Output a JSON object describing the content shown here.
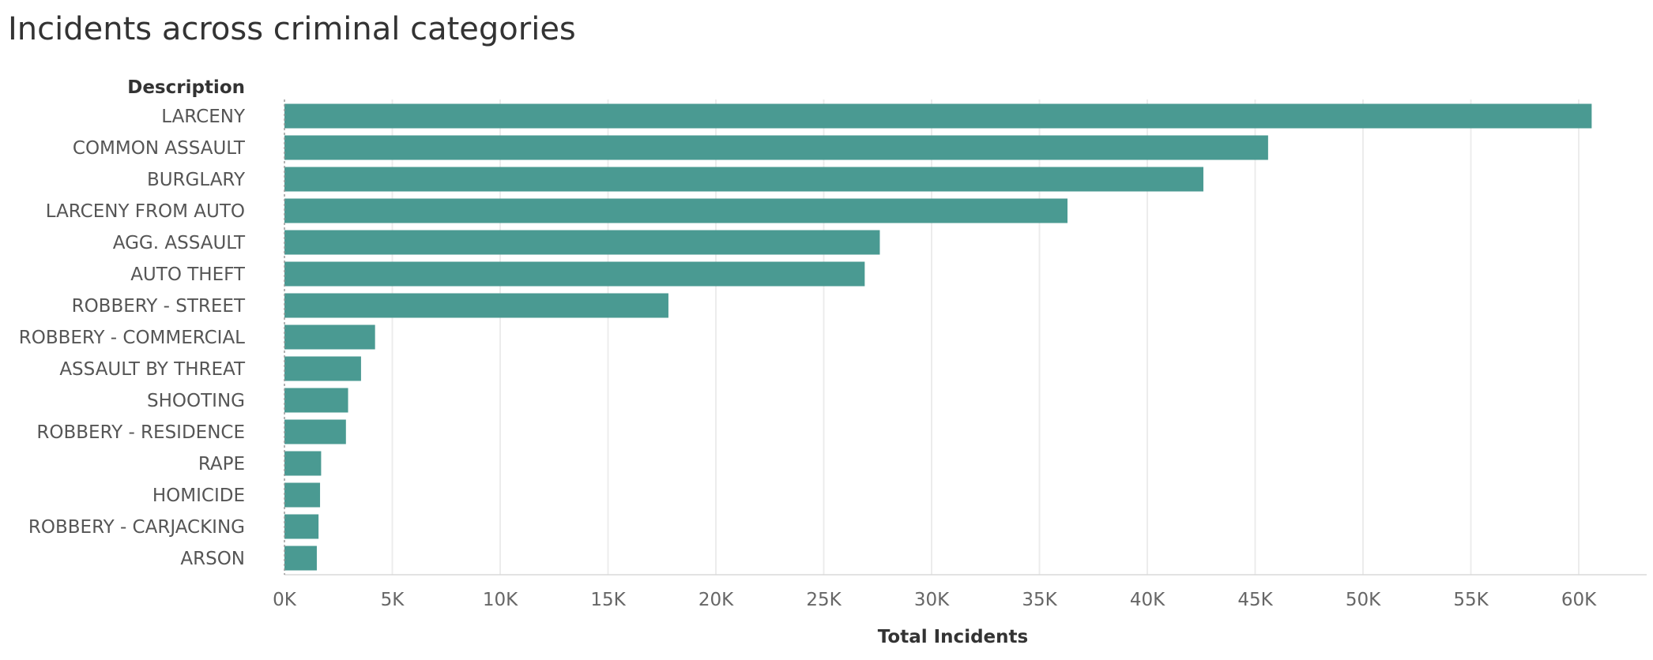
{
  "chart_data": {
    "type": "bar",
    "orientation": "horizontal",
    "title": "Incidents across criminal categories",
    "category_axis_label": "Description",
    "xlabel": "Total Incidents",
    "categories": [
      "LARCENY",
      "COMMON ASSAULT",
      "BURGLARY",
      "LARCENY FROM AUTO",
      "AGG. ASSAULT",
      "AUTO THEFT",
      "ROBBERY - STREET",
      "ROBBERY - COMMERCIAL",
      "ASSAULT BY THREAT",
      "SHOOTING",
      "ROBBERY - RESIDENCE",
      "RAPE",
      "HOMICIDE",
      "ROBBERY - CARJACKING",
      "ARSON"
    ],
    "values": [
      60600,
      45600,
      42600,
      36300,
      27600,
      26900,
      17800,
      4200,
      3550,
      2950,
      2850,
      1700,
      1650,
      1580,
      1500
    ],
    "xlim": [
      0,
      63000
    ],
    "xticks": [
      0,
      5000,
      10000,
      15000,
      20000,
      25000,
      30000,
      35000,
      40000,
      45000,
      50000,
      55000,
      60000
    ],
    "xtick_labels": [
      "0K",
      "5K",
      "10K",
      "15K",
      "20K",
      "25K",
      "30K",
      "35K",
      "40K",
      "45K",
      "50K",
      "55K",
      "60K"
    ],
    "bar_color": "#4a9a92",
    "grid": true,
    "legend": "none"
  }
}
